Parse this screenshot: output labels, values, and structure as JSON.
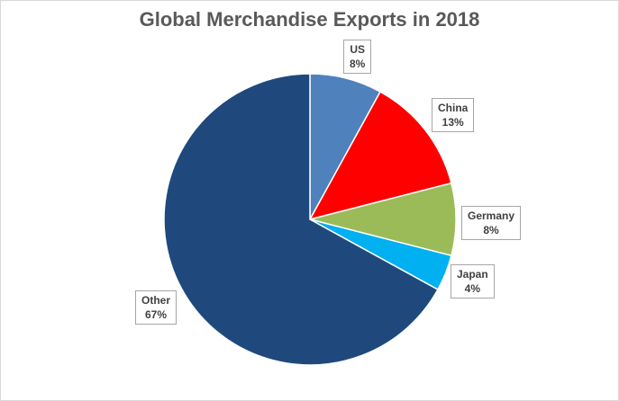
{
  "chart_data": {
    "type": "pie",
    "title": "Global Merchandise Exports in 2018",
    "slices": [
      {
        "label": "US",
        "value": 8,
        "value_label": "8%",
        "color": "#4f81bd"
      },
      {
        "label": "China",
        "value": 13,
        "value_label": "13%",
        "color": "#ff0000"
      },
      {
        "label": "Germany",
        "value": 8,
        "value_label": "8%",
        "color": "#9bbb59"
      },
      {
        "label": "Japan",
        "value": 4,
        "value_label": "4%",
        "color": "#00b0f0"
      },
      {
        "label": "Other",
        "value": 67,
        "value_label": "67%",
        "color": "#1f497d"
      }
    ],
    "legend": "none",
    "start_angle": "12 o'clock",
    "direction": "clockwise"
  }
}
